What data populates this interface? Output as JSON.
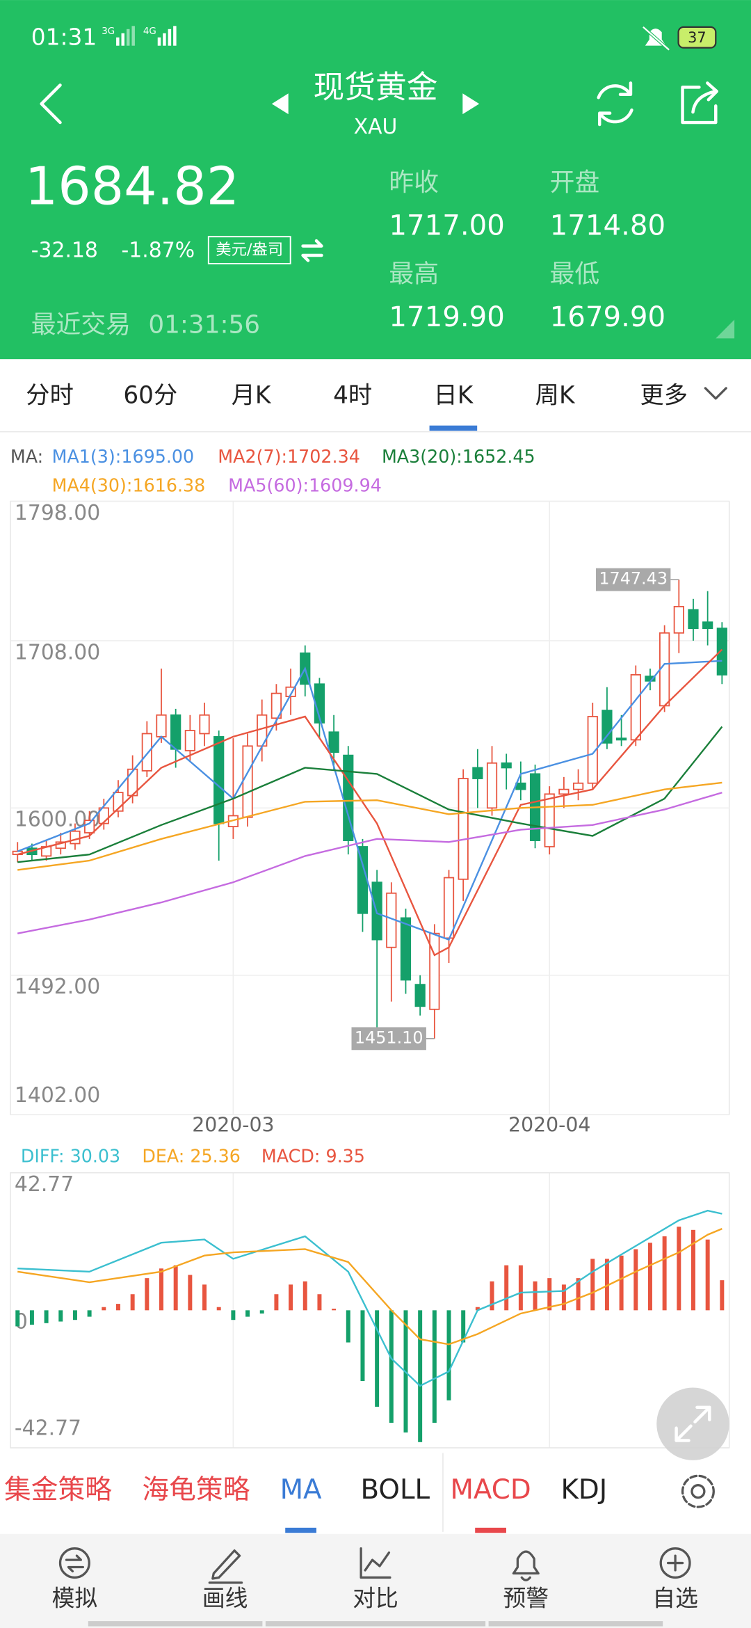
{
  "status_bar": {
    "time": "01:31",
    "network1": "3G",
    "network2": "4G",
    "battery": "37"
  },
  "header": {
    "title": "现货黄金",
    "subtitle": "XAU"
  },
  "quote": {
    "price": "1684.82",
    "change": "-32.18",
    "change_pct": "-1.87%",
    "unit": "美元/盎司",
    "last_trade_label": "最近交易",
    "last_trade_time": "01:31:56",
    "stats": [
      {
        "label": "昨收",
        "value": "1717.00"
      },
      {
        "label": "开盘",
        "value": "1714.80"
      },
      {
        "label": "最高",
        "value": "1719.90"
      },
      {
        "label": "最低",
        "value": "1679.90"
      }
    ]
  },
  "tabs": {
    "items": [
      "分时",
      "60分",
      "月K",
      "4时",
      "日K",
      "周K",
      "更多"
    ],
    "active": 4
  },
  "chart_data": [
    {
      "type": "candlestick",
      "legend_title": "MA:",
      "grid": true,
      "up_color": "#e8553f",
      "down_color": "#14a06a",
      "categories": [
        null,
        null,
        null,
        null,
        null,
        null,
        null,
        null,
        null,
        null,
        null,
        null,
        null,
        null,
        null,
        "2020-03",
        null,
        null,
        null,
        null,
        null,
        null,
        null,
        null,
        null,
        null,
        null,
        null,
        null,
        null,
        null,
        null,
        null,
        null,
        null,
        null,
        null,
        "2020-04",
        null,
        null,
        null,
        null,
        null,
        null,
        null,
        null,
        null,
        null,
        null,
        null
      ],
      "open": [
        1570,
        1574,
        1569,
        1574,
        1577,
        1584,
        1590,
        1598,
        1608,
        1624,
        1646,
        1660,
        1637,
        1648,
        1646,
        1588,
        1594,
        1640,
        1658,
        1672,
        1700,
        1680,
        1649,
        1634,
        1575,
        1552,
        1510,
        1529,
        1486,
        1470,
        1516,
        1554,
        1626,
        1600,
        1629,
        1616,
        1622,
        1575,
        1609,
        1612,
        1616,
        1663,
        1645,
        1644,
        1685,
        1666,
        1713,
        1728,
        1720,
        1716
      ],
      "high": [
        1578,
        1577,
        1579,
        1584,
        1590,
        1598,
        1606,
        1618,
        1634,
        1656,
        1690,
        1664,
        1660,
        1668,
        1650,
        1645,
        1648,
        1670,
        1680,
        1690,
        1705,
        1684,
        1660,
        1640,
        1580,
        1560,
        1552,
        1535,
        1492,
        1525,
        1560,
        1625,
        1638,
        1640,
        1635,
        1630,
        1628,
        1614,
        1620,
        1625,
        1668,
        1678,
        1660,
        1692,
        1690,
        1718,
        1747.43,
        1735,
        1740,
        1720
      ],
      "low": [
        1565,
        1566,
        1566,
        1570,
        1573,
        1580,
        1586,
        1594,
        1603,
        1620,
        1642,
        1626,
        1630,
        1640,
        1566,
        1580,
        1588,
        1630,
        1650,
        1660,
        1672,
        1645,
        1625,
        1570,
        1520,
        1458,
        1475,
        1480,
        1466,
        1451.1,
        1500,
        1540,
        1600,
        1595,
        1612,
        1605,
        1574,
        1570,
        1600,
        1605,
        1612,
        1638,
        1640,
        1640,
        1676,
        1662,
        1700,
        1708,
        1705,
        1680
      ],
      "close": [
        1572,
        1570,
        1575,
        1578,
        1585,
        1592,
        1600,
        1610,
        1625,
        1648,
        1660,
        1638,
        1650,
        1660,
        1590,
        1595,
        1640,
        1660,
        1674,
        1678,
        1680,
        1655,
        1636,
        1579,
        1532,
        1515,
        1545,
        1489,
        1472,
        1519,
        1555,
        1619,
        1619,
        1629,
        1626,
        1612,
        1579,
        1609,
        1612,
        1616,
        1659,
        1642,
        1644,
        1686,
        1682,
        1713,
        1730,
        1716,
        1716,
        1686
      ],
      "ylim": [
        1402,
        1798
      ],
      "yticks": [
        {
          "value": 1798,
          "label": "1798.00"
        },
        {
          "value": 1708,
          "label": "1708.00"
        },
        {
          "value": 1600,
          "label": "1600.00"
        },
        {
          "value": 1492,
          "label": "1492.00"
        },
        {
          "value": 1402,
          "label": "1402.00"
        }
      ],
      "annotations": [
        {
          "label": "1747.43",
          "value": 1747.43,
          "index": 46
        },
        {
          "label": "1451.10",
          "value": 1451.1,
          "index": 29
        }
      ],
      "series": [
        {
          "name": "MA1(3):1695.00",
          "color": "#4a90e2",
          "x": [
            0,
            5,
            10,
            15,
            20,
            25,
            30,
            35,
            40,
            45,
            49
          ],
          "values": [
            1572,
            1590,
            1646,
            1606,
            1690,
            1532,
            1515,
            1622,
            1635,
            1693,
            1695
          ]
        },
        {
          "name": "MA2(7):1702.34",
          "color": "#e8553f",
          "x": [
            0,
            5,
            10,
            15,
            20,
            25,
            29,
            30,
            35,
            40,
            45,
            49
          ],
          "values": [
            1570,
            1582,
            1626,
            1646,
            1659,
            1590,
            1505,
            1510,
            1602,
            1612,
            1666,
            1702.34
          ]
        },
        {
          "name": "MA3(20):1652.45",
          "color": "#1a7f3a",
          "x": [
            0,
            5,
            10,
            15,
            20,
            25,
            30,
            35,
            40,
            45,
            49
          ],
          "values": [
            1565,
            1570,
            1589,
            1606,
            1626,
            1622,
            1599,
            1590,
            1582,
            1606,
            1652.45
          ]
        },
        {
          "name": "MA4(30):1616.38",
          "color": "#f5a623",
          "x": [
            0,
            5,
            10,
            15,
            20,
            25,
            30,
            35,
            40,
            45,
            49
          ],
          "values": [
            1560,
            1566,
            1580,
            1592,
            1604,
            1605,
            1596,
            1600,
            1602,
            1612,
            1616.38
          ]
        },
        {
          "name": "MA5(60):1609.94",
          "color": "#c56be0",
          "x": [
            0,
            5,
            10,
            15,
            20,
            25,
            30,
            35,
            40,
            45,
            49
          ],
          "values": [
            1519,
            1528,
            1539,
            1552,
            1569,
            1580,
            1578,
            1586,
            1589,
            1599,
            1609.94
          ]
        }
      ]
    },
    {
      "type": "macd",
      "grid": false,
      "ylim": [
        -42.77,
        42.77
      ],
      "yticks": [
        42.77,
        0,
        -42.77
      ],
      "histogram": {
        "name": "MACD: 9.35",
        "color": "#e8553f",
        "up_color": "#e8553f",
        "down_color": "#14a06a",
        "values": [
          -5,
          -4.5,
          -4,
          -3.5,
          -3,
          -2,
          1,
          2,
          5,
          10,
          13,
          14,
          11,
          8,
          1,
          -3,
          -2,
          -1,
          5,
          8,
          9,
          5,
          0.5,
          -10,
          -22,
          -30,
          -35,
          -38,
          -41,
          -35,
          -28,
          -10,
          1,
          9,
          14,
          14,
          9,
          10,
          8,
          10,
          16,
          16,
          17,
          19,
          21,
          23,
          26,
          25,
          22,
          9.35
        ]
      },
      "series": [
        {
          "name": "DIFF: 30.03",
          "color": "#3bbfcf",
          "x": [
            0,
            5,
            10,
            13,
            15,
            20,
            23,
            26,
            28,
            30,
            32,
            35,
            38,
            40,
            43,
            46,
            48,
            49
          ],
          "values": [
            13,
            12,
            21,
            22,
            16,
            23,
            12,
            -15,
            -23.5,
            -19,
            0,
            5.5,
            6,
            12,
            20,
            28,
            31,
            30.03
          ]
        },
        {
          "name": "DEA: 25.36",
          "color": "#f5a623",
          "x": [
            0,
            5,
            10,
            13,
            15,
            20,
            23,
            26,
            28,
            30,
            32,
            35,
            38,
            40,
            43,
            46,
            48,
            49
          ],
          "values": [
            12,
            8.7,
            12,
            17,
            18,
            19,
            15,
            0,
            -9,
            -10.6,
            -7.4,
            -1,
            2,
            5.5,
            12,
            18,
            23.5,
            25.36
          ]
        }
      ]
    }
  ],
  "indicator_tabs": [
    "集金策略",
    "海龟策略",
    "MA",
    "BOLL",
    "MACD",
    "KDJ"
  ],
  "bottom_nav": [
    "模拟",
    "画线",
    "对比",
    "预警",
    "自选"
  ]
}
